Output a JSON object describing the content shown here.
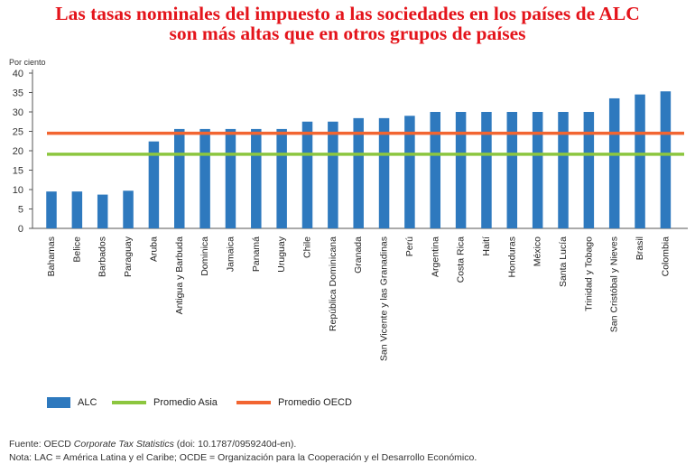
{
  "title": {
    "line1": "Las tasas nominales del impuesto a las sociedades en los países de ALC",
    "line2": "son más altas que en otros grupos de países"
  },
  "chart_data": {
    "type": "bar",
    "ylabel": "Por ciento",
    "ylim": [
      0,
      40
    ],
    "yticks": [
      0,
      5,
      10,
      15,
      20,
      25,
      30,
      35,
      40
    ],
    "categories": [
      "Bahamas",
      "Belice",
      "Barbados",
      "Paraguay",
      "Aruba",
      "Antigua y Barbuda",
      "Dominica",
      "Jamaica",
      "Panamá",
      "Uruguay",
      "Chile",
      "República Dominicana",
      "Granada",
      "San Vicente y las Granadinas",
      "Perú",
      "Argentina",
      "Costa Rica",
      "Haití",
      "Honduras",
      "México",
      "Santa Lucía",
      "Trinidad y Tobago",
      "San Cristóbal y Nieves",
      "Brasil",
      "Colombia"
    ],
    "series": [
      {
        "name": "ALC",
        "values": [
          9.5,
          9.5,
          8.7,
          9.7,
          22.4,
          25.6,
          25.6,
          25.6,
          25.6,
          25.6,
          27.5,
          27.5,
          28.4,
          28.4,
          29.0,
          30.0,
          30.0,
          30.0,
          30.0,
          30.0,
          30.0,
          30.0,
          33.5,
          34.5,
          35.3
        ],
        "color": "#2e79be"
      }
    ],
    "reference_lines": [
      {
        "name": "Promedio Asia",
        "value": 19.1,
        "color": "#8cc63f"
      },
      {
        "name": "Promedio OECD",
        "value": 24.5,
        "color": "#f26531"
      }
    ],
    "legend": [
      "ALC",
      "Promedio Asia",
      "Promedio OECD"
    ]
  },
  "footer": {
    "source_prefix": "Fuente: OECD ",
    "source_italic": "Corporate Tax Statistics",
    "source_suffix": " (doi: 10.1787/0959240d-en).",
    "note": "Nota: LAC = América Latina y el Caribe; OCDE = Organización para la Cooperación y el Desarrollo Económico."
  }
}
